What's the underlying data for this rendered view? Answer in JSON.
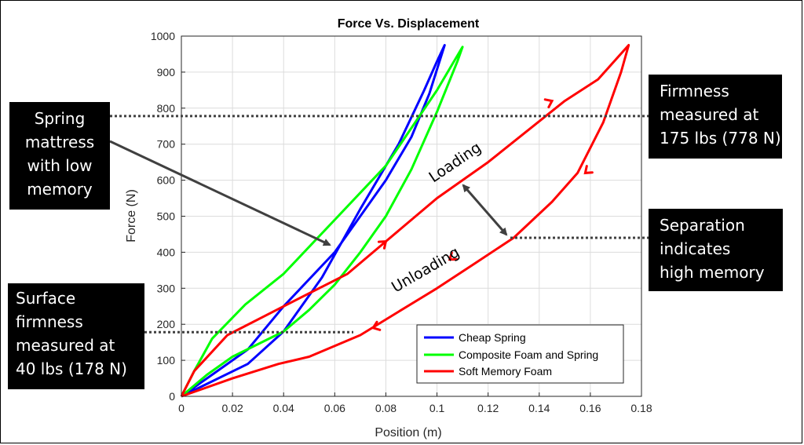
{
  "chart_data": {
    "type": "line",
    "title": "Force Vs. Displacement",
    "xlabel": "Position (m)",
    "ylabel": "Force (N)",
    "xlim": [
      0,
      0.18
    ],
    "ylim": [
      0,
      1000
    ],
    "xticks": [
      0,
      0.02,
      0.04,
      0.06,
      0.08,
      0.1,
      0.12,
      0.14,
      0.16,
      0.18
    ],
    "xtick_labels": [
      "0",
      "0.02",
      "0.04",
      "0.06",
      "0.08",
      "0.1",
      "0.12",
      "0.14",
      "0.16",
      "0.18"
    ],
    "yticks": [
      0,
      100,
      200,
      300,
      400,
      500,
      600,
      700,
      800,
      900,
      1000
    ],
    "ytick_labels": [
      "0",
      "100",
      "200",
      "300",
      "400",
      "500",
      "600",
      "700",
      "800",
      "900",
      "1000"
    ],
    "grid": true,
    "legend_position": "bottom-right",
    "series": [
      {
        "name": "Cheap Spring",
        "color": "#0000ff",
        "points": [
          [
            0,
            0
          ],
          [
            0.012,
            60
          ],
          [
            0.026,
            130
          ],
          [
            0.04,
            250
          ],
          [
            0.06,
            400
          ],
          [
            0.08,
            600
          ],
          [
            0.09,
            720
          ],
          [
            0.097,
            840
          ],
          [
            0.103,
            975
          ],
          [
            0.1,
            930
          ],
          [
            0.095,
            850
          ],
          [
            0.085,
            700
          ],
          [
            0.07,
            520
          ],
          [
            0.055,
            330
          ],
          [
            0.04,
            180
          ],
          [
            0.026,
            90
          ],
          [
            0,
            0
          ]
        ]
      },
      {
        "name": "Composite Foam and Spring",
        "color": "#00ff00",
        "points": [
          [
            0,
            0
          ],
          [
            0.005,
            70
          ],
          [
            0.012,
            160
          ],
          [
            0.025,
            255
          ],
          [
            0.04,
            340
          ],
          [
            0.06,
            490
          ],
          [
            0.08,
            640
          ],
          [
            0.1,
            850
          ],
          [
            0.11,
            970
          ],
          [
            0.108,
            930
          ],
          [
            0.1,
            790
          ],
          [
            0.09,
            630
          ],
          [
            0.08,
            500
          ],
          [
            0.07,
            400
          ],
          [
            0.06,
            310
          ],
          [
            0.05,
            240
          ],
          [
            0.04,
            180
          ],
          [
            0.02,
            110
          ],
          [
            0.01,
            60
          ],
          [
            0,
            0
          ]
        ]
      },
      {
        "name": "Soft Memory Foam",
        "color": "#ff0000",
        "points": [
          [
            0,
            0
          ],
          [
            0.005,
            70
          ],
          [
            0.018,
            170
          ],
          [
            0.04,
            250
          ],
          [
            0.065,
            340
          ],
          [
            0.08,
            430
          ],
          [
            0.1,
            550
          ],
          [
            0.12,
            650
          ],
          [
            0.15,
            820
          ],
          [
            0.163,
            880
          ],
          [
            0.175,
            975
          ],
          [
            0.172,
            900
          ],
          [
            0.165,
            760
          ],
          [
            0.155,
            620
          ],
          [
            0.145,
            540
          ],
          [
            0.13,
            440
          ],
          [
            0.115,
            370
          ],
          [
            0.1,
            300
          ],
          [
            0.085,
            235
          ],
          [
            0.07,
            170
          ],
          [
            0.05,
            110
          ],
          [
            0.038,
            90
          ],
          [
            0.02,
            50
          ],
          [
            0,
            0
          ]
        ]
      }
    ],
    "annotations": {
      "loading": "Loading",
      "unloading": "Unloading"
    },
    "reference_lines": [
      778,
      178,
      440
    ]
  },
  "callouts": {
    "spring": [
      "Spring",
      "mattress",
      "with low",
      "memory"
    ],
    "surface": [
      "Surface",
      "firmness",
      "measured at",
      "40 lbs (178 N)"
    ],
    "firmness": [
      "Firmness",
      "measured at",
      "175 lbs (778 N)"
    ],
    "separation": [
      "Separation",
      "indicates",
      "high memory"
    ]
  },
  "colors": {
    "axis": "#262626",
    "grid": "#dcdcdc",
    "arrow": "#404040",
    "dotted": "#404040"
  }
}
